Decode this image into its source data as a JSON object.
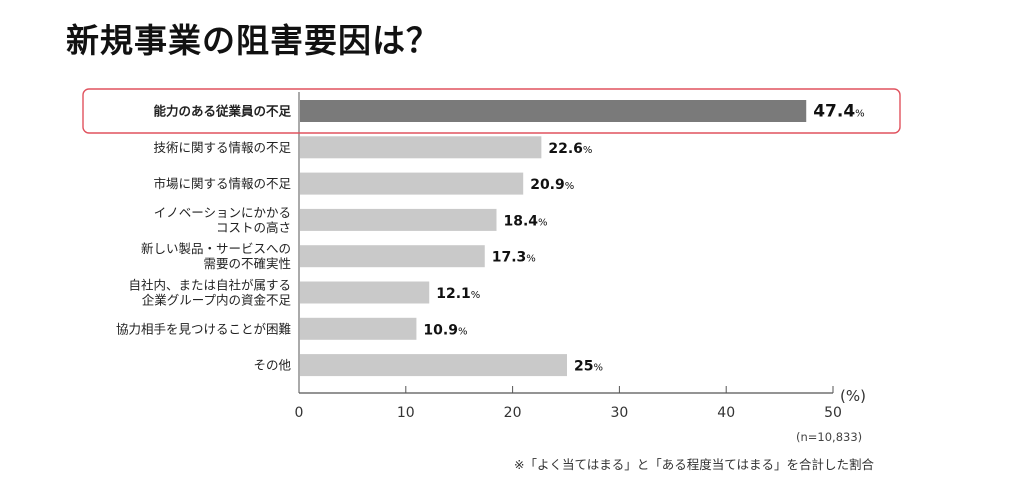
{
  "title": "新規事業の阻害要因は？",
  "colors": {
    "highlight_bar": "#7a7a7a",
    "bar": "#c9c9c9",
    "highlight_box": "#e0525e",
    "axis": "#555555"
  },
  "chart_data": {
    "type": "bar",
    "orientation": "horizontal",
    "categories": [
      [
        "能力のある従業員の不足"
      ],
      [
        "技術に関する情報の不足"
      ],
      [
        "市場に関する情報の不足"
      ],
      [
        "イノベーションにかかる",
        "コストの高さ"
      ],
      [
        "新しい製品・サービスへの",
        "需要の不確実性"
      ],
      [
        "自社内、または自社が属する",
        "企業グループ内の資金不足"
      ],
      [
        "協力相手を見つけることが困難"
      ],
      [
        "その他"
      ]
    ],
    "values": [
      47.4,
      22.6,
      20.9,
      18.4,
      17.3,
      12.1,
      10.9,
      25
    ],
    "value_labels": [
      "47.4%",
      "22.6%",
      "20.9%",
      "18.4%",
      "17.3%",
      "12.1%",
      "10.9%",
      "25%"
    ],
    "highlighted_index": 0,
    "xlim": [
      0,
      50
    ],
    "xticks": [
      0,
      10,
      20,
      30,
      40,
      50
    ],
    "x_unit_label": "(%)",
    "sample_size": "(n=10,833)",
    "footnote": "※「よく当てはまる」と「ある程度当てはまる」を合計した割合"
  }
}
